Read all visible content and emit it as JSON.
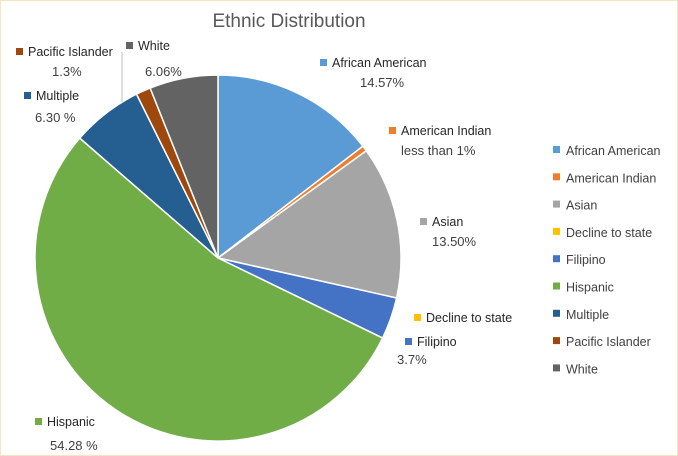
{
  "chart_data": {
    "type": "pie",
    "title": "Ethnic Distribution",
    "slices": [
      {
        "name": "African American",
        "value": 14.57,
        "label": "14.57%",
        "color": "#5b9bd5"
      },
      {
        "name": "American Indian",
        "value": 0.5,
        "label": "less than 1%",
        "color": "#ed7d31"
      },
      {
        "name": "Asian",
        "value": 13.5,
        "label": "13.50%",
        "color": "#a5a5a5"
      },
      {
        "name": "Decline to state",
        "value": 0.0,
        "label": "",
        "color": "#ffc000"
      },
      {
        "name": "Filipino",
        "value": 3.7,
        "label": "3.7%",
        "color": "#4472c4"
      },
      {
        "name": "Hispanic",
        "value": 54.28,
        "label": "54.28 %",
        "color": "#70ad47"
      },
      {
        "name": "Multiple",
        "value": 6.3,
        "label": "6.30 %",
        "color": "#255e91"
      },
      {
        "name": "Pacific Islander",
        "value": 1.3,
        "label": "1.3%",
        "color": "#9e480e"
      },
      {
        "name": "White",
        "value": 6.06,
        "label": "6.06%",
        "color": "#636363"
      }
    ],
    "legend_position": "right"
  }
}
